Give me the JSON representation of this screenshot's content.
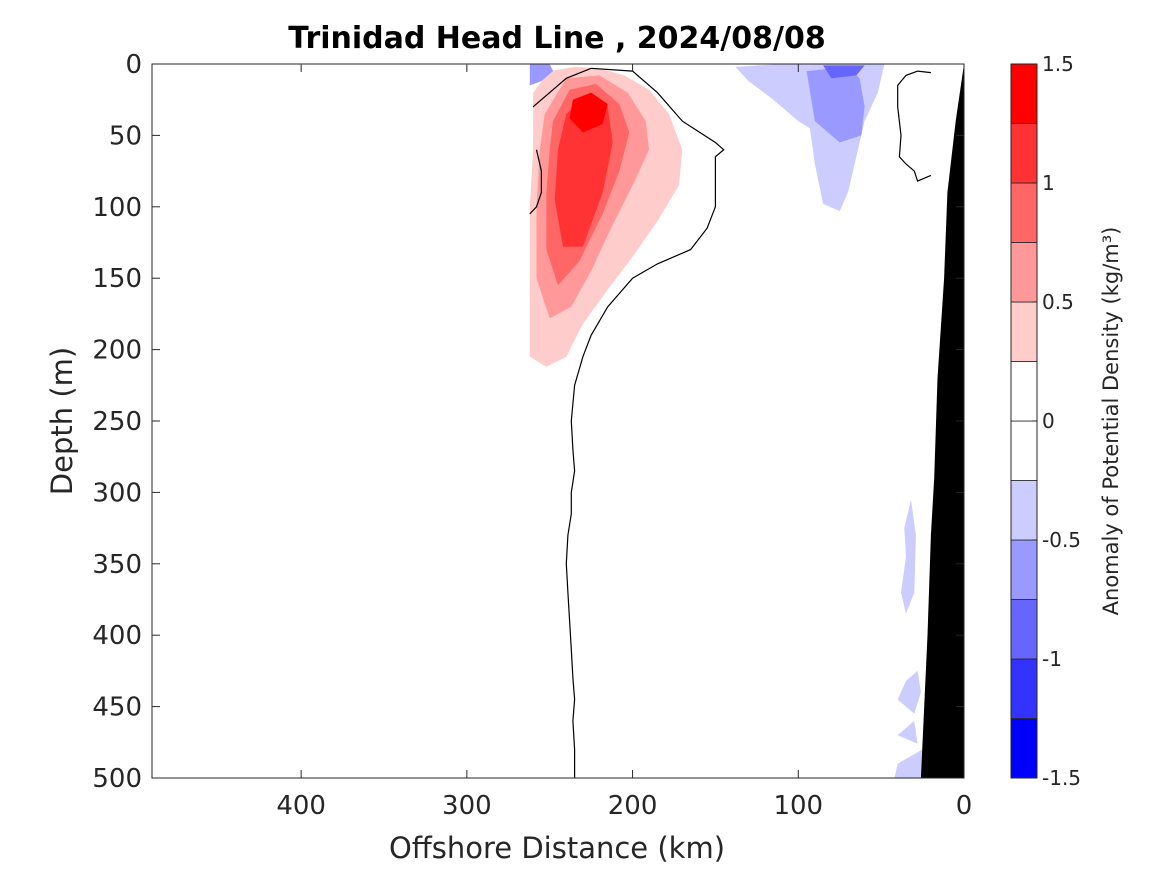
{
  "chart_data": {
    "type": "contour",
    "title": "Trinidad Head Line , 2024/08/08",
    "xlabel": "Offshore Distance (km)",
    "ylabel": "Depth (m)",
    "xlim": [
      490,
      0
    ],
    "ylim": [
      0,
      500
    ],
    "x_reversed": true,
    "y_reversed": true,
    "xticks": [
      "400",
      "300",
      "200",
      "100",
      "0"
    ],
    "xtick_values": [
      400,
      300,
      200,
      100,
      0
    ],
    "yticks": [
      "0",
      "50",
      "100",
      "150",
      "200",
      "250",
      "300",
      "350",
      "400",
      "450",
      "500"
    ],
    "ytick_values": [
      0,
      50,
      100,
      150,
      200,
      250,
      300,
      350,
      400,
      450,
      500
    ],
    "colorbar": {
      "label": "Anomaly of Potential Density (kg/m³)",
      "range": [
        -1.5,
        1.5
      ],
      "levels": [
        -1.5,
        -1.25,
        -1,
        -0.75,
        -0.5,
        -0.25,
        0,
        0.25,
        0.5,
        0.75,
        1,
        1.25,
        1.5
      ],
      "colors": [
        "#0000ff",
        "#3333ff",
        "#6666ff",
        "#9999ff",
        "#ccccff",
        "#ffffff",
        "#ffffff",
        "#ffcccc",
        "#ff9999",
        "#ff6666",
        "#ff3333",
        "#ff0000"
      ],
      "tick_labels": [
        "1.5",
        "1",
        "0.5",
        "0",
        "-0.5",
        "-1",
        "-1.5"
      ],
      "tick_values": [
        1.5,
        1,
        0.5,
        0,
        -0.5,
        -1,
        -1.5
      ]
    },
    "regions": [
      {
        "name": "positive anomaly",
        "color": "#ffcccc",
        "points": [
          [
            260,
            20
          ],
          [
            250,
            5
          ],
          [
            235,
            2
          ],
          [
            220,
            3
          ],
          [
            205,
            8
          ],
          [
            190,
            18
          ],
          [
            178,
            35
          ],
          [
            170,
            60
          ],
          [
            172,
            85
          ],
          [
            185,
            110
          ],
          [
            200,
            135
          ],
          [
            215,
            158
          ],
          [
            230,
            182
          ],
          [
            240,
            205
          ],
          [
            252,
            212
          ],
          [
            262,
            205
          ],
          [
            262,
            160
          ],
          [
            262,
            100
          ],
          [
            260,
            60
          ]
        ]
      },
      {
        "name": "positive anomaly",
        "color": "#ff9999",
        "points": [
          [
            253,
            35
          ],
          [
            240,
            10
          ],
          [
            220,
            8
          ],
          [
            203,
            20
          ],
          [
            192,
            40
          ],
          [
            190,
            60
          ],
          [
            200,
            85
          ],
          [
            213,
            115
          ],
          [
            225,
            145
          ],
          [
            237,
            170
          ],
          [
            250,
            178
          ],
          [
            258,
            150
          ],
          [
            258,
            100
          ],
          [
            256,
            60
          ]
        ]
      },
      {
        "name": "positive anomaly",
        "color": "#ff6666",
        "points": [
          [
            248,
            40
          ],
          [
            238,
            18
          ],
          [
            222,
            14
          ],
          [
            208,
            28
          ],
          [
            202,
            48
          ],
          [
            208,
            75
          ],
          [
            218,
            105
          ],
          [
            232,
            138
          ],
          [
            245,
            155
          ],
          [
            252,
            130
          ],
          [
            252,
            90
          ],
          [
            250,
            60
          ]
        ]
      },
      {
        "name": "positive anomaly",
        "color": "#ff3333",
        "points": [
          [
            240,
            35
          ],
          [
            228,
            22
          ],
          [
            215,
            30
          ],
          [
            212,
            55
          ],
          [
            218,
            90
          ],
          [
            230,
            128
          ],
          [
            242,
            128
          ],
          [
            247,
            95
          ],
          [
            245,
            60
          ]
        ]
      },
      {
        "name": "positive anomaly",
        "color": "#ff0000",
        "points": [
          [
            236,
            25
          ],
          [
            225,
            20
          ],
          [
            215,
            28
          ],
          [
            218,
            42
          ],
          [
            230,
            48
          ],
          [
            238,
            38
          ]
        ]
      },
      {
        "name": "negative anomaly",
        "color": "#ccccff",
        "points": [
          [
            138,
            2
          ],
          [
            110,
            0
          ],
          [
            48,
            0
          ],
          [
            52,
            20
          ],
          [
            60,
            40
          ],
          [
            65,
            65
          ],
          [
            70,
            90
          ],
          [
            75,
            103
          ],
          [
            85,
            98
          ],
          [
            90,
            70
          ],
          [
            93,
            45
          ],
          [
            100,
            40
          ],
          [
            115,
            25
          ],
          [
            130,
            12
          ]
        ]
      },
      {
        "name": "negative anomaly",
        "color": "#9999ff",
        "points": [
          [
            95,
            5
          ],
          [
            90,
            40
          ],
          [
            75,
            55
          ],
          [
            62,
            50
          ],
          [
            60,
            30
          ],
          [
            63,
            10
          ],
          [
            70,
            2
          ]
        ]
      },
      {
        "name": "negative anomaly",
        "color": "#6666ff",
        "points": [
          [
            85,
            1
          ],
          [
            80,
            10
          ],
          [
            65,
            8
          ],
          [
            60,
            1
          ]
        ]
      },
      {
        "name": "negative anomaly",
        "color": "#9999ff",
        "points": [
          [
            262,
            0
          ],
          [
            250,
            0
          ],
          [
            248,
            5
          ],
          [
            255,
            12
          ],
          [
            262,
            15
          ]
        ]
      },
      {
        "name": "negative anomaly",
        "color": "#ccccff",
        "points": [
          [
            32,
            305
          ],
          [
            36,
            325
          ],
          [
            35,
            345
          ],
          [
            38,
            370
          ],
          [
            35,
            385
          ],
          [
            30,
            370
          ],
          [
            29,
            330
          ]
        ]
      },
      {
        "name": "negative anomaly",
        "color": "#ccccff",
        "points": [
          [
            28,
            425
          ],
          [
            35,
            432
          ],
          [
            40,
            445
          ],
          [
            30,
            455
          ],
          [
            26,
            440
          ]
        ]
      },
      {
        "name": "negative anomaly",
        "color": "#ccccff",
        "points": [
          [
            30,
            460
          ],
          [
            40,
            470
          ],
          [
            28,
            476
          ]
        ]
      },
      {
        "name": "negative anomaly",
        "color": "#ccccff",
        "points": [
          [
            25,
            480
          ],
          [
            40,
            490
          ],
          [
            42,
            500
          ],
          [
            25,
            500
          ]
        ]
      }
    ],
    "zero_contours": [
      {
        "name": "zero contour",
        "points": [
          [
            260,
            30
          ],
          [
            250,
            20
          ],
          [
            240,
            10
          ],
          [
            225,
            3
          ],
          [
            200,
            5
          ],
          [
            185,
            20
          ],
          [
            170,
            40
          ],
          [
            150,
            55
          ],
          [
            145,
            60
          ],
          [
            150,
            65
          ],
          [
            150,
            90
          ],
          [
            150,
            100
          ],
          [
            155,
            115
          ],
          [
            165,
            130
          ],
          [
            185,
            140
          ],
          [
            200,
            150
          ],
          [
            215,
            170
          ],
          [
            225,
            190
          ],
          [
            230,
            205
          ],
          [
            235,
            225
          ],
          [
            237,
            250
          ],
          [
            236,
            270
          ],
          [
            235,
            285
          ],
          [
            237,
            300
          ],
          [
            237,
            315
          ],
          [
            239,
            330
          ],
          [
            240,
            350
          ],
          [
            239,
            370
          ],
          [
            238,
            390
          ],
          [
            237,
            410
          ],
          [
            236,
            430
          ],
          [
            235,
            445
          ],
          [
            236,
            460
          ],
          [
            235,
            480
          ],
          [
            235,
            500
          ]
        ]
      },
      {
        "name": "zero contour",
        "points": [
          [
            258,
            60
          ],
          [
            255,
            75
          ],
          [
            255,
            90
          ],
          [
            258,
            100
          ],
          [
            262,
            105
          ]
        ]
      },
      {
        "name": "zero contour",
        "points": [
          [
            20,
            6
          ],
          [
            28,
            5
          ],
          [
            35,
            8
          ],
          [
            40,
            15
          ],
          [
            40,
            30
          ],
          [
            38,
            50
          ],
          [
            39,
            65
          ],
          [
            35,
            70
          ],
          [
            30,
            75
          ],
          [
            28,
            82
          ],
          [
            20,
            78
          ]
        ]
      }
    ],
    "shelf": {
      "name": "shelf bathymetry",
      "color": "#000000",
      "points": [
        [
          0,
          0
        ],
        [
          0,
          500
        ],
        [
          26,
          500
        ],
        [
          24,
          450
        ],
        [
          22,
          400
        ],
        [
          20,
          330
        ],
        [
          18,
          290
        ],
        [
          16,
          220
        ],
        [
          12,
          150
        ],
        [
          10,
          90
        ],
        [
          5,
          40
        ]
      ]
    }
  }
}
